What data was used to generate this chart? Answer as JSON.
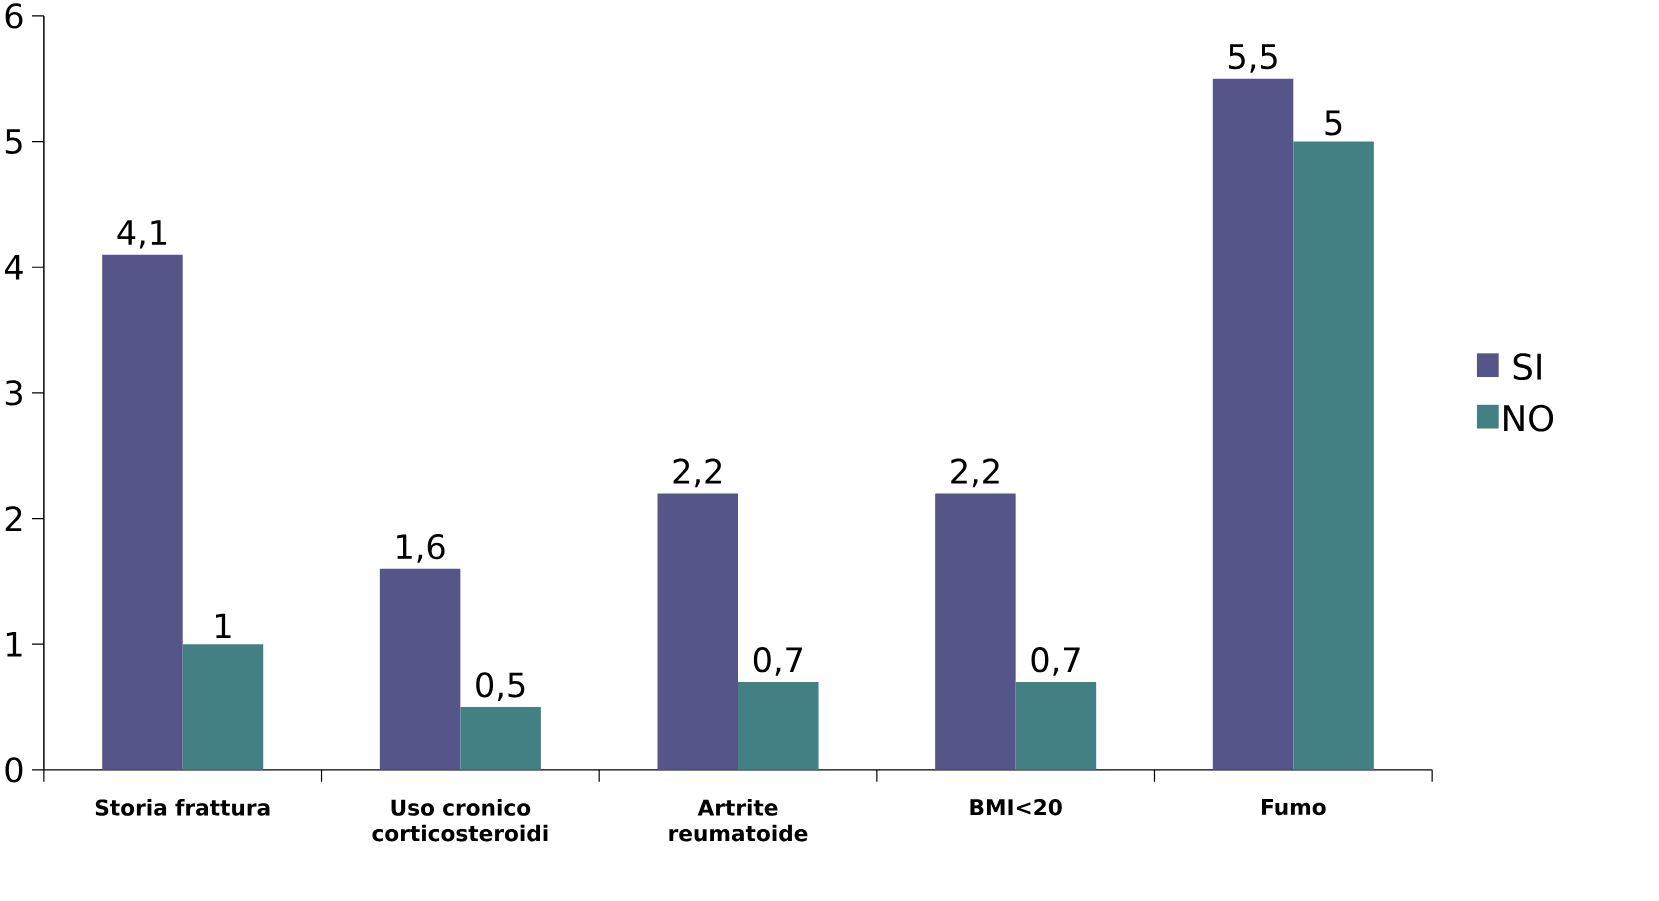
{
  "chart_data": {
    "type": "bar",
    "categories": [
      "Storia frattura",
      "Uso cronico corticosteroidi",
      "Artrite reumatoide",
      "BMI<20",
      "Fumo"
    ],
    "series": [
      {
        "name": "SI",
        "color": "#55558a",
        "values": [
          4.1,
          1.6,
          2.2,
          2.2,
          5.5
        ],
        "value_labels": [
          "4,1",
          "1,6",
          "2,2",
          "2,2",
          "5,5"
        ]
      },
      {
        "name": "NO",
        "color": "#428084",
        "values": [
          1,
          0.5,
          0.7,
          0.7,
          5
        ],
        "value_labels": [
          "1",
          "0,5",
          "0,7",
          "0,7",
          "5"
        ]
      }
    ],
    "ylim": [
      0,
      6
    ],
    "yticks": [
      0,
      1,
      2,
      3,
      4,
      5,
      6
    ],
    "grid": false,
    "legend": "right"
  }
}
